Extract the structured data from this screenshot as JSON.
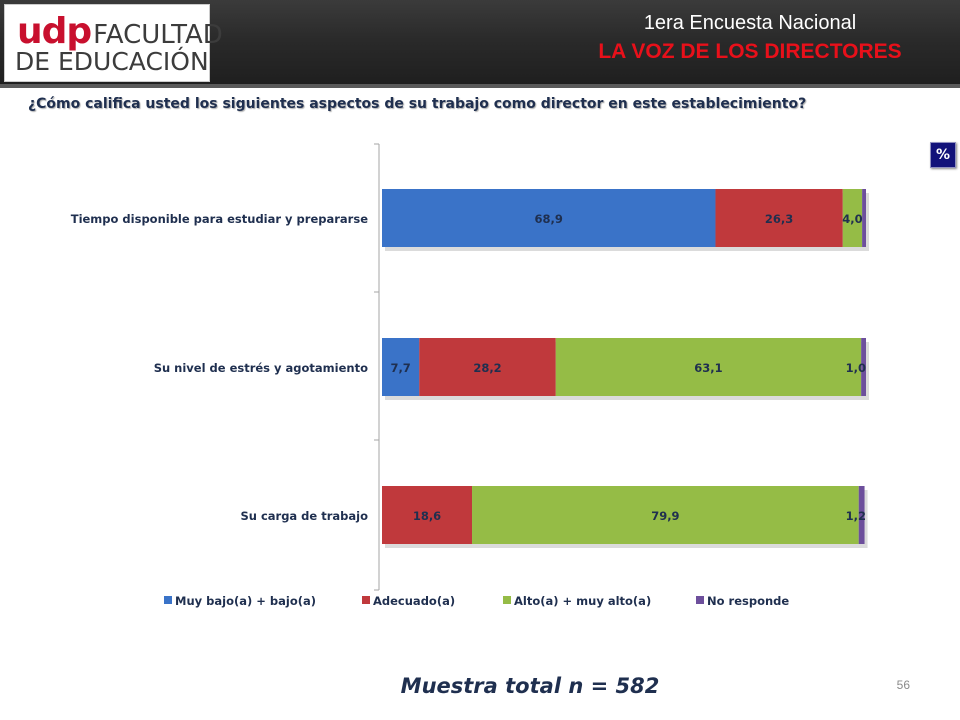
{
  "header": {
    "logo": {
      "brand": "udp",
      "line1": "FACULTAD",
      "line2": "DE EDUCACIÓN"
    },
    "title_line1": "1era Encuesta Nacional",
    "title_line2": "LA VOZ DE LOS DIRECTORES"
  },
  "question": "¿Cómo califica usted los siguientes aspectos de su trabajo como director en este establecimiento?",
  "unit_badge": "%",
  "footer": {
    "sample": "Muestra total n = 582",
    "page_number": "56"
  },
  "colors": {
    "muy_bajo": "#3a73c8",
    "adecuado": "#c0393c",
    "alto": "#95bc46",
    "no_responde": "#6d4f9c"
  },
  "chart_data": {
    "type": "bar",
    "orientation": "horizontal",
    "stacked": true,
    "xlim": [
      0,
      100
    ],
    "categories": [
      "Tiempo disponible para estudiar y prepararse",
      "Su nivel de estrés y agotamiento",
      "Su carga de trabajo"
    ],
    "series": [
      {
        "name": "Muy bajo(a) + bajo(a)",
        "color": "#3a73c8",
        "values": [
          68.9,
          7.7,
          0
        ],
        "labels": [
          "68,9",
          "7,7",
          ""
        ]
      },
      {
        "name": "Adecuado(a)",
        "color": "#c0393c",
        "values": [
          26.3,
          28.2,
          18.6
        ],
        "labels": [
          "26,3",
          "28,2",
          "18,6"
        ]
      },
      {
        "name": "Alto(a) + muy alto(a)",
        "color": "#95bc46",
        "values": [
          4.0,
          63.1,
          79.9
        ],
        "labels": [
          "4,0",
          "63,1",
          "79,9"
        ]
      },
      {
        "name": "No responde",
        "color": "#6d4f9c",
        "values": [
          0.8,
          1.0,
          1.2
        ],
        "labels": [
          "",
          "1,0",
          "1,2"
        ]
      }
    ],
    "legend_position": "bottom",
    "grid": false
  }
}
